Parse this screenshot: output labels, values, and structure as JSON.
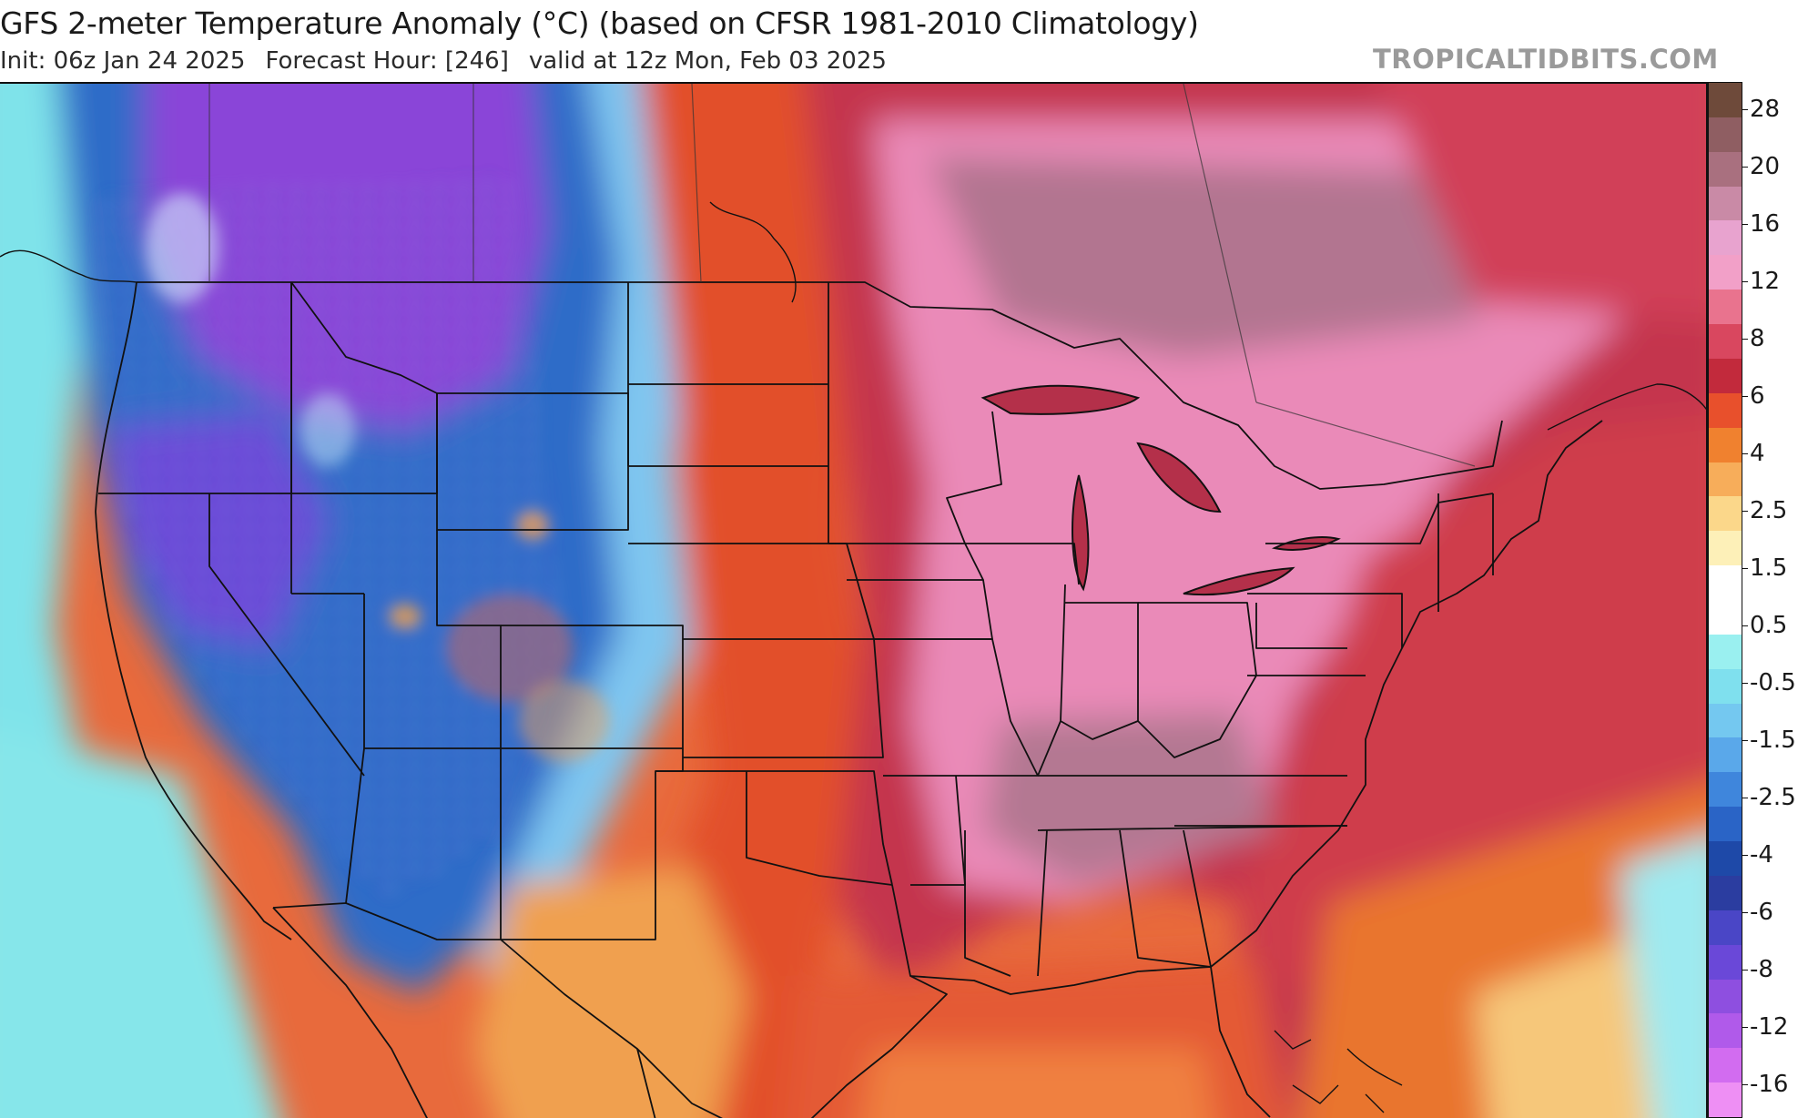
{
  "header": {
    "title": "GFS 2-meter Temperature Anomaly (°C) (based on CFSR 1981-2010 Climatology)",
    "init": "Init: 06z Jan 24 2025",
    "forecast_hour": "Forecast Hour: [246]",
    "valid": "valid at 12z Mon, Feb 03 2025",
    "watermark": "TROPICALTIDBITS.COM"
  },
  "map": {
    "region": "Continental United States",
    "colors": {
      "warm_strong": "#b8324a",
      "warm_pink": "#e77fb0",
      "warm_mauve": "#b0708c",
      "orange": "#e8602a",
      "yellow": "#f7d88a",
      "cool_cyan": "#7fe3ea",
      "cool_blue": "#2f72c8",
      "cool_purple": "#8b3fd6"
    }
  },
  "colorbar": {
    "labels": [
      "28",
      "20",
      "16",
      "12",
      "8",
      "6",
      "4",
      "2.5",
      "1.5",
      "0.5",
      "-0.5",
      "-1.5",
      "-2.5",
      "-4",
      "-6",
      "-8",
      "-12",
      "-16"
    ],
    "swatches": [
      "#6e4a3a",
      "#8f5e62",
      "#a9707f",
      "#c98aa6",
      "#e8a3cf",
      "#f2a0c8",
      "#e9738e",
      "#d9475f",
      "#c22a3c",
      "#e8502c",
      "#f0812f",
      "#f7ad5a",
      "#fbd78a",
      "#fdf0b8",
      "#ffffff",
      "#ffffff",
      "#9af0f0",
      "#7fe0ee",
      "#74c8f0",
      "#5aa8ea",
      "#3f86dc",
      "#2a64c6",
      "#1e49a8",
      "#2b3da0",
      "#4a46c6",
      "#6a48d8",
      "#8e4fe0",
      "#b05aea",
      "#d26cf0",
      "#ee8ff4"
    ]
  }
}
